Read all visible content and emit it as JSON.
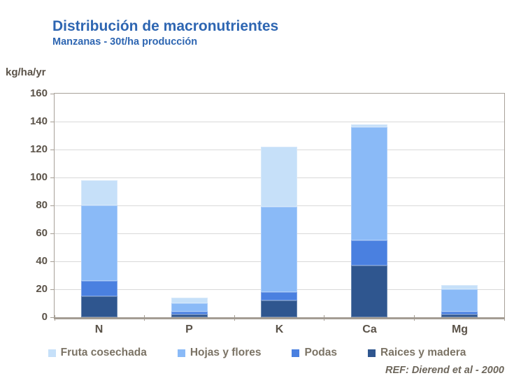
{
  "header": {
    "title": "Distribución de macronutrientes",
    "subtitle": "Manzanas - 30t/ha producción"
  },
  "footer": {
    "reference": "REF: Dierend et al - 2000"
  },
  "colors": {
    "title_blue": "#2e66b2",
    "axis_text": "#5b5349",
    "legend_text": "#7b7365",
    "gridline": "#d9d9d9",
    "plot_border": "#a8a199",
    "axis_line": "#a49d93",
    "background": "#ffffff"
  },
  "chart_data": {
    "type": "bar",
    "stacked": true,
    "title": "Distribución de macronutrientes",
    "subtitle": "Manzanas - 30t/ha producción",
    "ylabel": "kg/ha/yr",
    "xlabel": "",
    "ylim": [
      0,
      160
    ],
    "yticks": [
      0,
      20,
      40,
      60,
      80,
      100,
      120,
      140,
      160
    ],
    "grid": "horizontal",
    "legend_position": "bottom",
    "categories": [
      "N",
      "P",
      "K",
      "Ca",
      "Mg"
    ],
    "series": [
      {
        "name": "Raices y madera",
        "color": "#2f568f",
        "values": [
          15,
          2,
          12,
          37,
          2
        ]
      },
      {
        "name": "Podas",
        "color": "#4a80e0",
        "values": [
          11,
          2,
          6,
          18,
          2
        ]
      },
      {
        "name": "Hojas y flores",
        "color": "#8abaf7",
        "values": [
          54,
          6,
          61,
          81,
          16
        ]
      },
      {
        "name": "Fruta cosechada",
        "color": "#c6e0f9",
        "values": [
          18,
          4,
          43,
          2,
          3
        ]
      }
    ],
    "legend_order": [
      "Fruta cosechada",
      "Hojas y flores",
      "Podas",
      "Raices y madera"
    ]
  }
}
